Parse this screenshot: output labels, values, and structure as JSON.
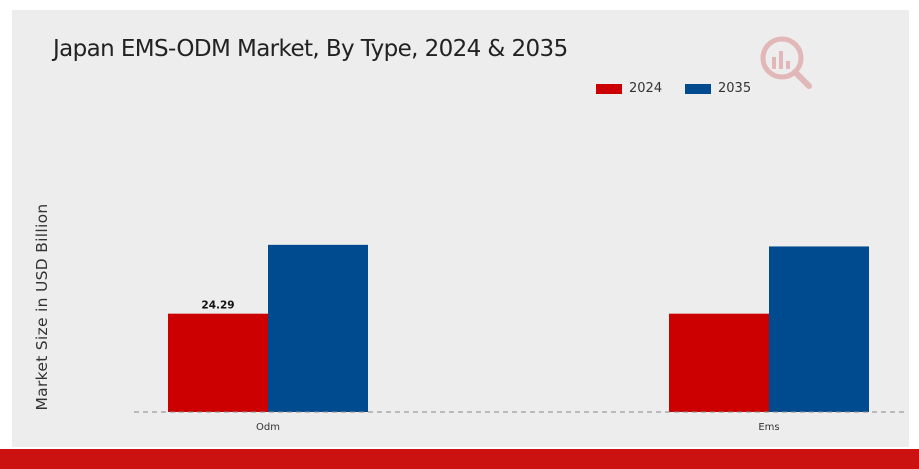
{
  "chart_data": {
    "type": "bar",
    "title": "Japan EMS-ODM Market, By Type, 2024 & 2035",
    "ylabel": "Market Size in USD Billion",
    "xlabel": "",
    "categories": [
      "Odm",
      "Ems"
    ],
    "series": [
      {
        "name": "2024",
        "color": "#cc0000",
        "values": [
          24.29,
          24.29
        ]
      },
      {
        "name": "2035",
        "color": "#004a8f",
        "values": [
          41.3,
          40.9
        ]
      }
    ],
    "data_labels": [
      {
        "series": 0,
        "index": 0,
        "text": "24.29"
      }
    ],
    "ylim": [
      0,
      42
    ],
    "grid": false,
    "legend_position": "top-right",
    "baseline": "dashed"
  },
  "colors": {
    "background": "#ededed",
    "footer_bar": "#cc1111",
    "accent": "#cc0000"
  },
  "icons": {
    "logo": "magnifier-bar-chart-logo-icon"
  }
}
